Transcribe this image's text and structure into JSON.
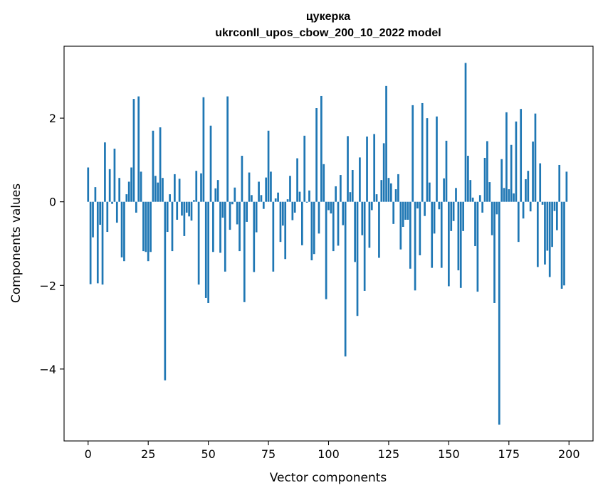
{
  "chart_data": {
    "type": "bar",
    "title_line1": "цукерка",
    "title_line2": "ukrconll_upos_cbow_200_10_2022 model",
    "xlabel": "Vector components",
    "ylabel": "Components values",
    "xlim": [
      -10,
      210
    ],
    "ylim": [
      -5.72,
      3.72
    ],
    "xticks": [
      0,
      25,
      50,
      75,
      100,
      125,
      150,
      175,
      200
    ],
    "xtick_labels": [
      "0",
      "25",
      "50",
      "75",
      "100",
      "125",
      "150",
      "175",
      "200"
    ],
    "yticks": [
      -4,
      -2,
      0,
      2
    ],
    "ytick_labels": [
      "−4",
      "−2",
      "0",
      "2"
    ],
    "bar_color": "#1f77b4",
    "grid": false,
    "legend": "none",
    "x": [
      0,
      1,
      2,
      3,
      4,
      5,
      6,
      7,
      8,
      9,
      10,
      11,
      12,
      13,
      14,
      15,
      16,
      17,
      18,
      19,
      20,
      21,
      22,
      23,
      24,
      25,
      26,
      27,
      28,
      29,
      30,
      31,
      32,
      33,
      34,
      35,
      36,
      37,
      38,
      39,
      40,
      41,
      42,
      43,
      44,
      45,
      46,
      47,
      48,
      49,
      50,
      51,
      52,
      53,
      54,
      55,
      56,
      57,
      58,
      59,
      60,
      61,
      62,
      63,
      64,
      65,
      66,
      67,
      68,
      69,
      70,
      71,
      72,
      73,
      74,
      75,
      76,
      77,
      78,
      79,
      80,
      81,
      82,
      83,
      84,
      85,
      86,
      87,
      88,
      89,
      90,
      91,
      92,
      93,
      94,
      95,
      96,
      97,
      98,
      99,
      100,
      101,
      102,
      103,
      104,
      105,
      106,
      107,
      108,
      109,
      110,
      111,
      112,
      113,
      114,
      115,
      116,
      117,
      118,
      119,
      120,
      121,
      122,
      123,
      124,
      125,
      126,
      127,
      128,
      129,
      130,
      131,
      132,
      133,
      134,
      135,
      136,
      137,
      138,
      139,
      140,
      141,
      142,
      143,
      144,
      145,
      146,
      147,
      148,
      149,
      150,
      151,
      152,
      153,
      154,
      155,
      156,
      157,
      158,
      159,
      160,
      161,
      162,
      163,
      164,
      165,
      166,
      167,
      168,
      169,
      170,
      171,
      172,
      173,
      174,
      175,
      176,
      177,
      178,
      179,
      180,
      181,
      182,
      183,
      184,
      185,
      186,
      187,
      188,
      189,
      190,
      191,
      192,
      193,
      194,
      195,
      196,
      197,
      198,
      199
    ],
    "values": [
      0.82,
      -1.97,
      -0.85,
      0.35,
      -1.95,
      -0.55,
      -1.98,
      1.42,
      -0.72,
      0.78,
      -0.05,
      1.27,
      -0.5,
      0.57,
      -1.33,
      -1.42,
      0.18,
      0.48,
      0.82,
      2.46,
      -0.26,
      2.52,
      0.72,
      -1.18,
      -1.2,
      -1.42,
      -1.2,
      1.7,
      0.62,
      0.46,
      1.78,
      0.57,
      -4.27,
      -0.72,
      0.18,
      -1.18,
      0.66,
      -0.43,
      0.55,
      -0.33,
      -0.82,
      -0.26,
      -0.35,
      -0.45,
      0.04,
      0.74,
      -1.98,
      0.68,
      2.5,
      -2.3,
      -2.42,
      1.82,
      -1.2,
      0.32,
      0.52,
      -1.22,
      -0.38,
      -1.67,
      2.52,
      -0.67,
      -0.06,
      0.34,
      -0.54,
      -1.18,
      1.1,
      -2.4,
      -0.48,
      0.7,
      0.16,
      -1.68,
      -0.73,
      0.48,
      0.16,
      -0.17,
      0.58,
      1.7,
      0.72,
      -1.67,
      0.08,
      0.22,
      -0.96,
      -0.57,
      -1.37,
      0.06,
      0.62,
      -0.44,
      -0.26,
      1.04,
      0.24,
      -1.04,
      1.58,
      -0.02,
      0.27,
      -1.4,
      -1.25,
      2.24,
      -0.76,
      2.53,
      0.9,
      -2.33,
      -0.2,
      -0.28,
      -1.18,
      0.37,
      -1.05,
      0.64,
      -0.56,
      -3.7,
      1.57,
      0.23,
      0.76,
      -1.44,
      -2.73,
      1.06,
      -0.8,
      -2.13,
      1.56,
      -1.1,
      -0.2,
      1.62,
      0.18,
      -1.34,
      0.52,
      1.4,
      2.77,
      0.57,
      0.44,
      -0.53,
      0.3,
      0.66,
      -1.14,
      -0.6,
      -0.43,
      -0.43,
      -1.6,
      2.31,
      -2.12,
      -0.16,
      -1.28,
      2.36,
      -0.34,
      2.0,
      0.46,
      -1.58,
      -0.76,
      2.04,
      -0.18,
      -1.58,
      0.56,
      1.46,
      -2.02,
      -0.7,
      -0.46,
      0.33,
      -1.64,
      -2.06,
      -0.7,
      3.32,
      1.1,
      0.52,
      0.1,
      -1.06,
      -2.15,
      0.16,
      -0.26,
      1.05,
      1.45,
      0.47,
      -0.8,
      -2.42,
      -0.3,
      -5.33,
      1.02,
      0.33,
      2.14,
      0.3,
      1.36,
      0.2,
      1.92,
      -0.96,
      2.22,
      -0.4,
      0.54,
      0.74,
      -0.23,
      1.44,
      2.11,
      -1.56,
      0.92,
      -0.07,
      -1.5,
      -1.17,
      -1.8,
      -1.08,
      -0.22,
      -0.68,
      0.88,
      -2.08,
      -2.0,
      0.72
    ]
  }
}
